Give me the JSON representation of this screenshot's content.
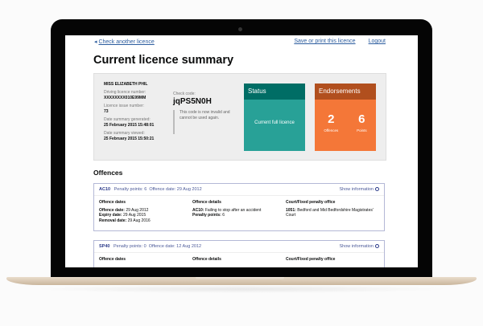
{
  "nav": {
    "back": "Check another licence",
    "save": "Save or print this licence",
    "logout": "Logout"
  },
  "title": "Current licence summary",
  "driver": {
    "name": "MISS ELIZABETH PHIL",
    "licence_number_label": "Driving licence number:",
    "licence_number": "XXXXXXXX010E99MM",
    "issue_label": "Licence issue number:",
    "issue": "73",
    "generated_label": "Date summary generated:",
    "generated": "25 February 2015 15:48:01",
    "viewed_label": "Date summary viewed:",
    "viewed": "25 February 2015 15:50:21"
  },
  "check": {
    "label": "Check code:",
    "code": "jqPS5N0H",
    "note": "This code is now invalid and cannot be used again."
  },
  "status": {
    "title": "Status",
    "value": "Current full licence",
    "color": "#28a197"
  },
  "endorsements": {
    "title": "Endorsements",
    "offences": "2",
    "offences_label": "Offences",
    "points": "6",
    "points_label": "Points",
    "color": "#f47738"
  },
  "offences_heading": "Offences",
  "offences": [
    {
      "code": "AC10",
      "points": "Penalty points: 6",
      "date": "Offence date: 29 Aug 2012",
      "show": "Show information",
      "col1_title": "Offence dates",
      "col2_title": "Offence details",
      "col3_title": "Court/Fixed penalty office",
      "offence_date_label": "Offence date:",
      "offence_date": "29 Aug 2012",
      "expiry_label": "Expiry date:",
      "expiry": "29 Aug 2015",
      "removal_label": "Removal date:",
      "removal": "29 Aug 2016",
      "detail_code": "AC10:",
      "detail": "Failing to stop after an accident",
      "pp_label": "Penalty points:",
      "pp": "6",
      "court_code": "1051:",
      "court": "Bedford and Mid Bedfordshire Magistrates' Court"
    },
    {
      "code": "SP40",
      "points": "Penalty points: 0",
      "date": "Offence date: 12 Aug 2012",
      "show": "Show information",
      "col1_title": "Offence dates",
      "col2_title": "Offence details",
      "col3_title": "Court/Fixed penalty office"
    }
  ]
}
